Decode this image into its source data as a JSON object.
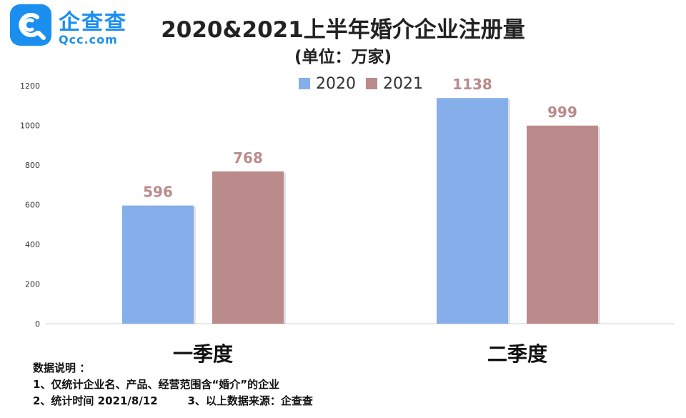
{
  "logo": {
    "name": "企查查",
    "url": "Qcc.com"
  },
  "chart_data": {
    "type": "bar",
    "title": "2020&2021上半年婚介企业注册量",
    "subtitle": "(单位：万家)",
    "categories": [
      "一季度",
      "二季度"
    ],
    "series": [
      {
        "name": "2020",
        "values": [
          596,
          1138
        ],
        "color": "#86aeea"
      },
      {
        "name": "2021",
        "values": [
          768,
          999
        ],
        "color": "#bb8a8b"
      }
    ],
    "ylim": [
      0,
      1200
    ],
    "yticks": [
      0,
      200,
      400,
      600,
      800,
      1000,
      1200
    ],
    "legend_position": "top",
    "grid": false,
    "data_label_color": "#bb8a8b"
  },
  "notes": {
    "heading": "数据说明 ：",
    "line1": "1、仅统计企业名、产品、经营范围含“婚介”的企业",
    "line2": "2、统计时间 2021/8/12        3、以上数据来源：企查查"
  }
}
